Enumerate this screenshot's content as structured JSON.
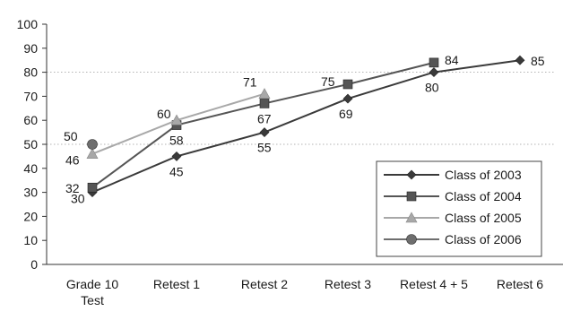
{
  "chart_data": {
    "type": "line",
    "title": "",
    "xlabel": "",
    "ylabel": "",
    "ylim": [
      0,
      100
    ],
    "yticks": [
      "0",
      "10",
      "20",
      "30",
      "40",
      "50",
      "60",
      "70",
      "80",
      "90",
      "100"
    ],
    "grid": "horizontal dotted lines at 50 and 80",
    "legend_position": "bottom-right",
    "categories": [
      [
        "Grade 10",
        "Test"
      ],
      [
        "Retest 1"
      ],
      [
        "Retest 2"
      ],
      [
        "Retest 3"
      ],
      [
        "Retest 4 + 5"
      ],
      [
        "Retest 6"
      ]
    ],
    "series": [
      {
        "name": "Class of 2003",
        "marker": "diamond",
        "color": "#3a3a3a",
        "values": [
          30,
          45,
          55,
          69,
          80,
          85
        ],
        "labels": [
          "30",
          "45",
          "55",
          "69",
          "80",
          "85"
        ]
      },
      {
        "name": "Class of 2004",
        "marker": "square",
        "color": "#555555",
        "values": [
          32,
          58,
          67,
          75,
          84,
          null
        ],
        "labels": [
          "32",
          "58",
          "67",
          "75",
          "84",
          null
        ]
      },
      {
        "name": "Class of 2005",
        "marker": "triangle",
        "color": "#a8a8a8",
        "values": [
          46,
          60,
          71,
          null,
          null,
          null
        ],
        "labels": [
          "46",
          "60",
          "71",
          null,
          null,
          null
        ]
      },
      {
        "name": "Class of 2006",
        "marker": "circle",
        "color": "#6e6e6e",
        "values": [
          50,
          null,
          null,
          null,
          null,
          null
        ],
        "labels": [
          "50",
          null,
          null,
          null,
          null,
          null
        ]
      }
    ]
  }
}
